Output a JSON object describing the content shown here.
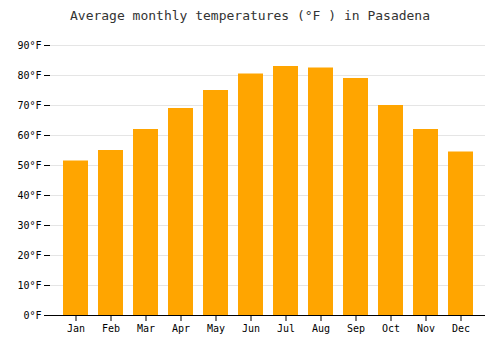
{
  "chart_data": {
    "type": "bar",
    "title": "Average monthly temperatures (°F ) in Pasadena",
    "categories": [
      "Jan",
      "Feb",
      "Mar",
      "Apr",
      "May",
      "Jun",
      "Jul",
      "Aug",
      "Sep",
      "Oct",
      "Nov",
      "Dec"
    ],
    "values": [
      51.5,
      55,
      62,
      69,
      75,
      80.5,
      83,
      82.5,
      79,
      70,
      62,
      54.5
    ],
    "color": "#FFA500",
    "ylim": [
      0,
      90
    ],
    "yticks": [
      {
        "value": 0,
        "label": "0°F"
      },
      {
        "value": 10,
        "label": "10°F"
      },
      {
        "value": 20,
        "label": "20°F"
      },
      {
        "value": 30,
        "label": "30°F"
      },
      {
        "value": 40,
        "label": "40°F"
      },
      {
        "value": 50,
        "label": "50°F"
      },
      {
        "value": 60,
        "label": "60°F"
      },
      {
        "value": 70,
        "label": "70°F"
      },
      {
        "value": 80,
        "label": "80°F"
      },
      {
        "value": 90,
        "label": "90°F"
      }
    ],
    "grid": true
  }
}
